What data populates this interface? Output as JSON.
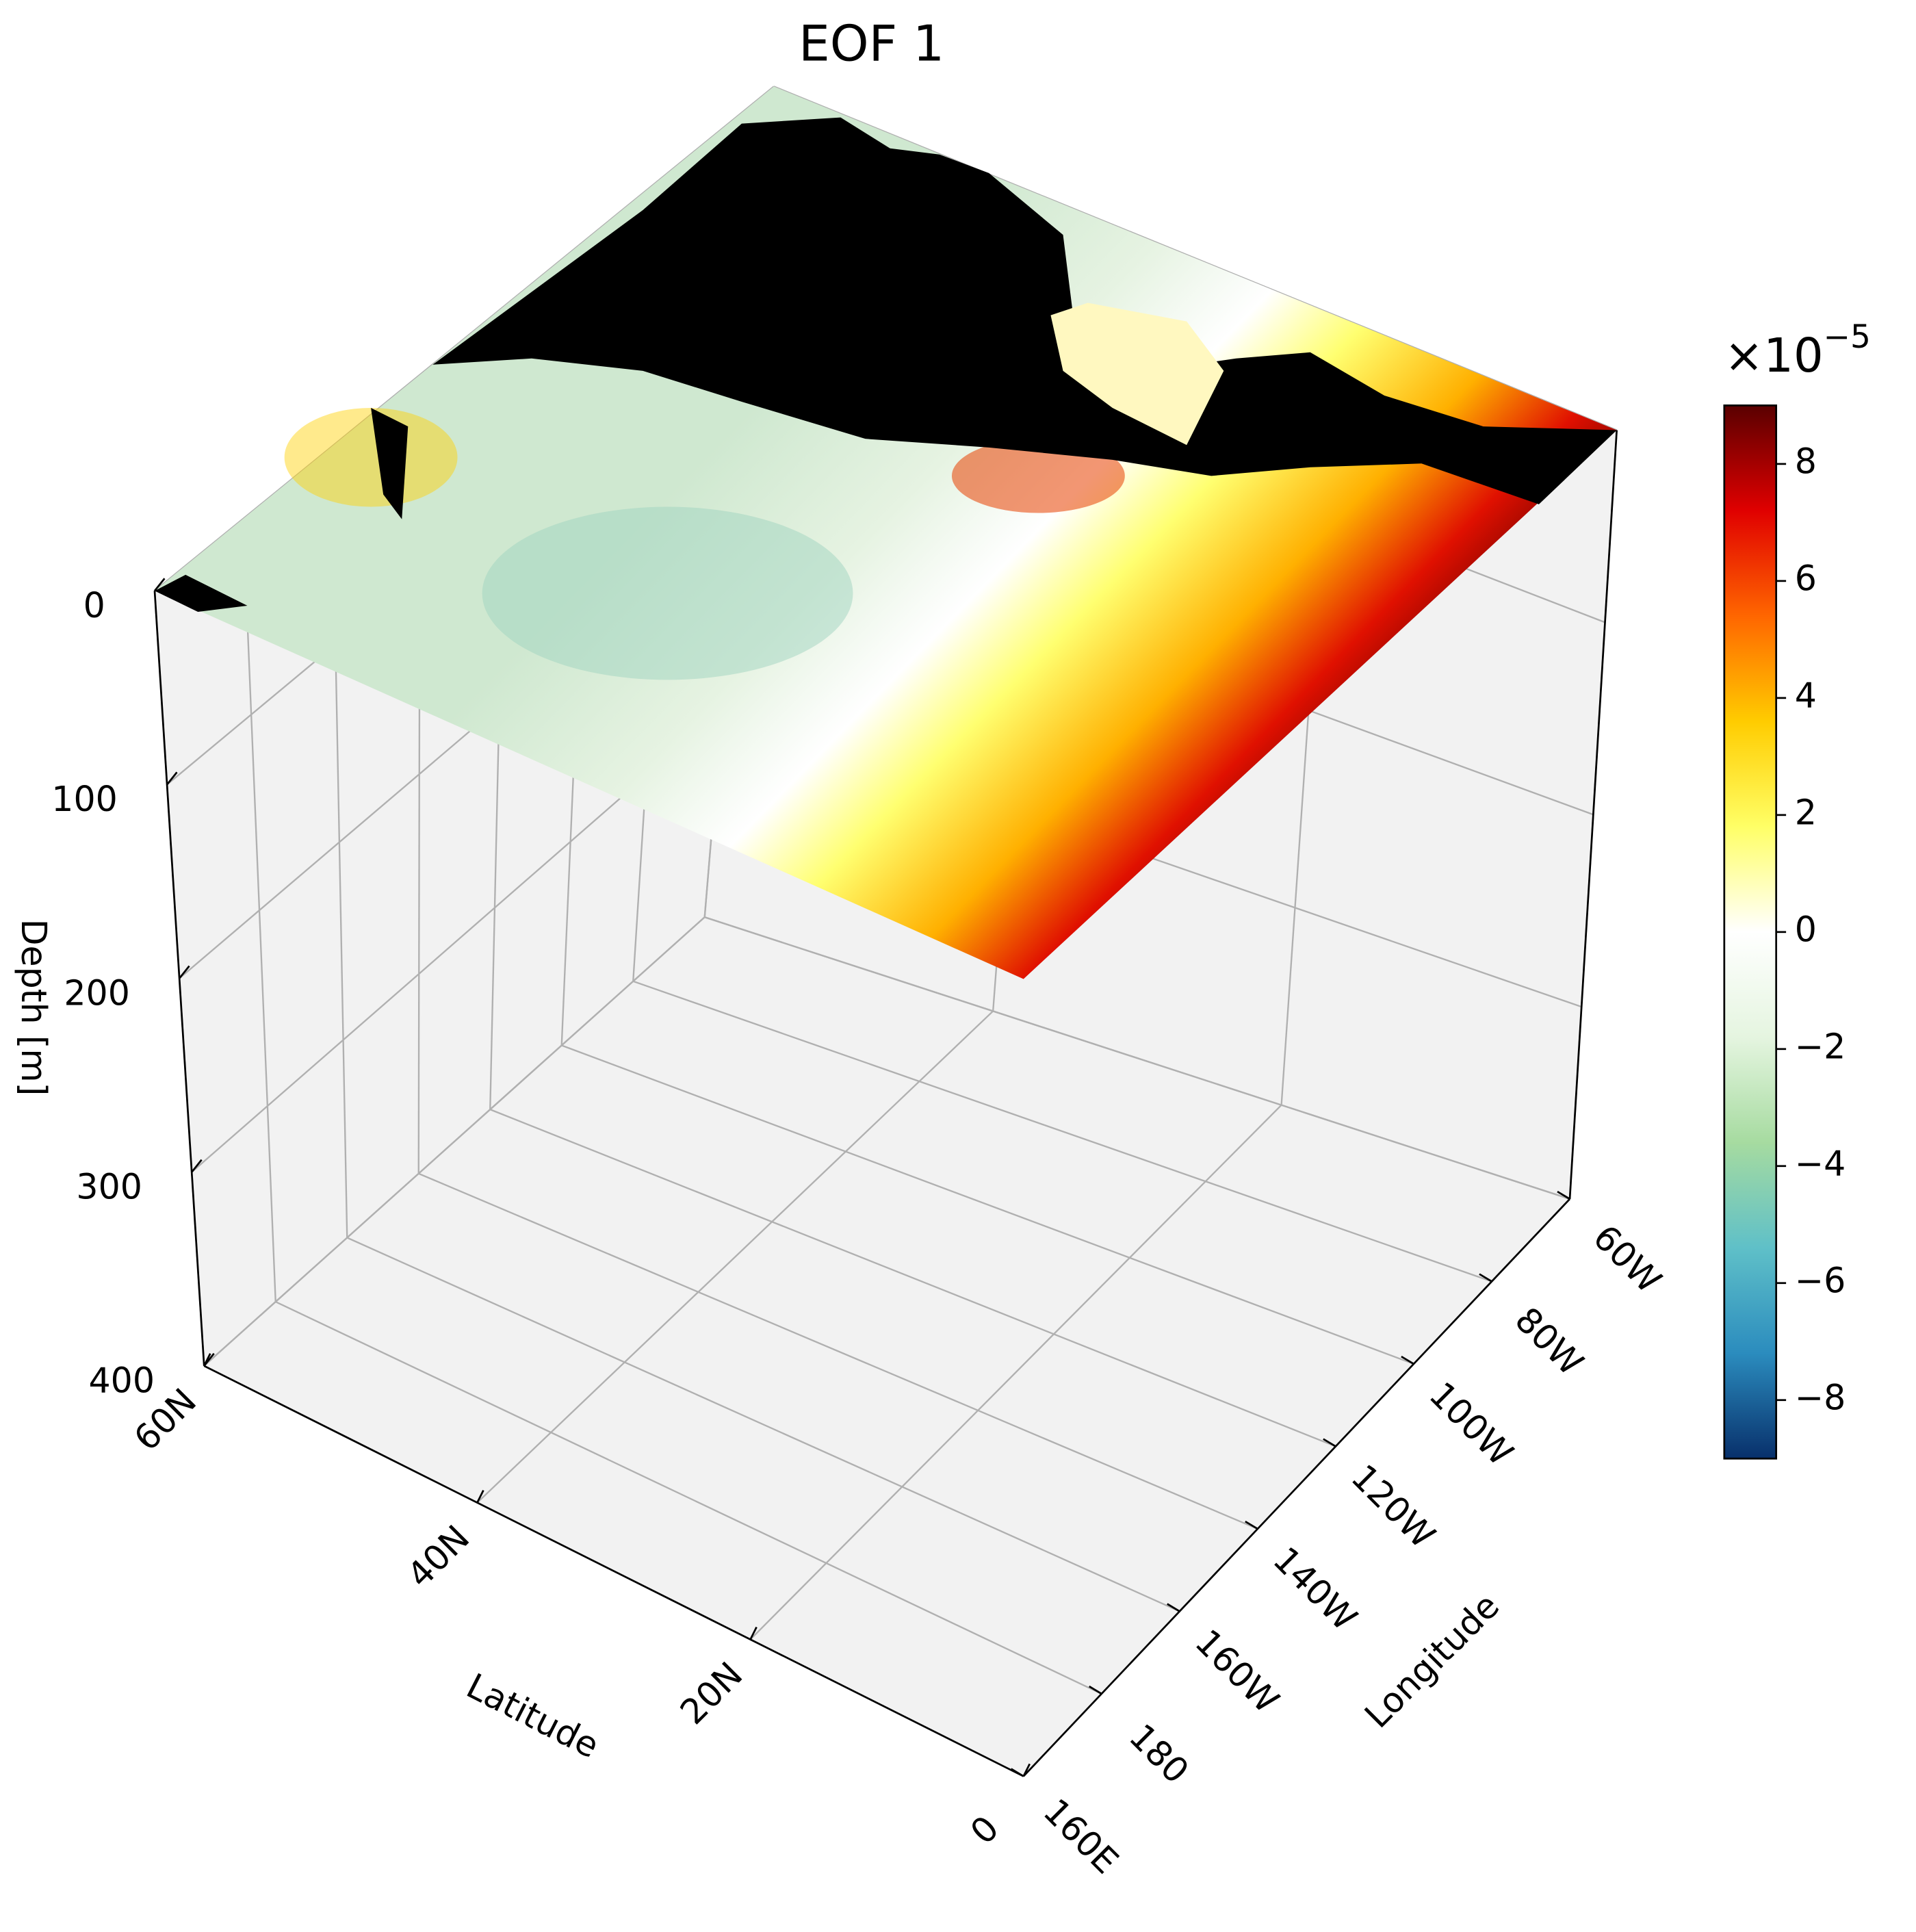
{
  "chart_data": {
    "type": "surface3d",
    "title": "EOF 1",
    "xlabel": "Latitude",
    "ylabel": "Longitude",
    "zlabel": "Depth [m]",
    "xlim": [
      60,
      0
    ],
    "xticks": [
      {
        "value": 60,
        "label": "60N"
      },
      {
        "value": 40,
        "label": "40N"
      },
      {
        "value": 20,
        "label": "20N"
      },
      0
    ],
    "ylim": [
      160,
      300
    ],
    "yticks": [
      {
        "value": 160,
        "label": "160E"
      },
      180,
      {
        "value": 200,
        "label": "160W"
      },
      {
        "value": 220,
        "label": "140W"
      },
      {
        "value": 240,
        "label": "120W"
      },
      {
        "value": 260,
        "label": "100W"
      },
      {
        "value": 280,
        "label": "80W"
      },
      {
        "value": 300,
        "label": "60W"
      }
    ],
    "zlim": [
      0,
      400
    ],
    "zticks": [
      0,
      100,
      200,
      300,
      400
    ],
    "grid": true,
    "colorbar": {
      "clim": [
        -9,
        9
      ],
      "ticks": [
        {
          "value": -8,
          "label": "−8"
        },
        {
          "value": -6,
          "label": "−6"
        },
        {
          "value": -4,
          "label": "−4"
        },
        {
          "value": -2,
          "label": "−2"
        },
        0,
        2,
        4,
        6,
        8
      ],
      "multiplier": "×10",
      "exponent": "−5",
      "colors": [
        "#08306b",
        "#2b8cbe",
        "#5fc0c8",
        "#a6dba0",
        "#e5f5e0",
        "#ffffff",
        "#ffff66",
        "#ffcc00",
        "#ff6600",
        "#e00000",
        "#5a0000"
      ]
    }
  }
}
